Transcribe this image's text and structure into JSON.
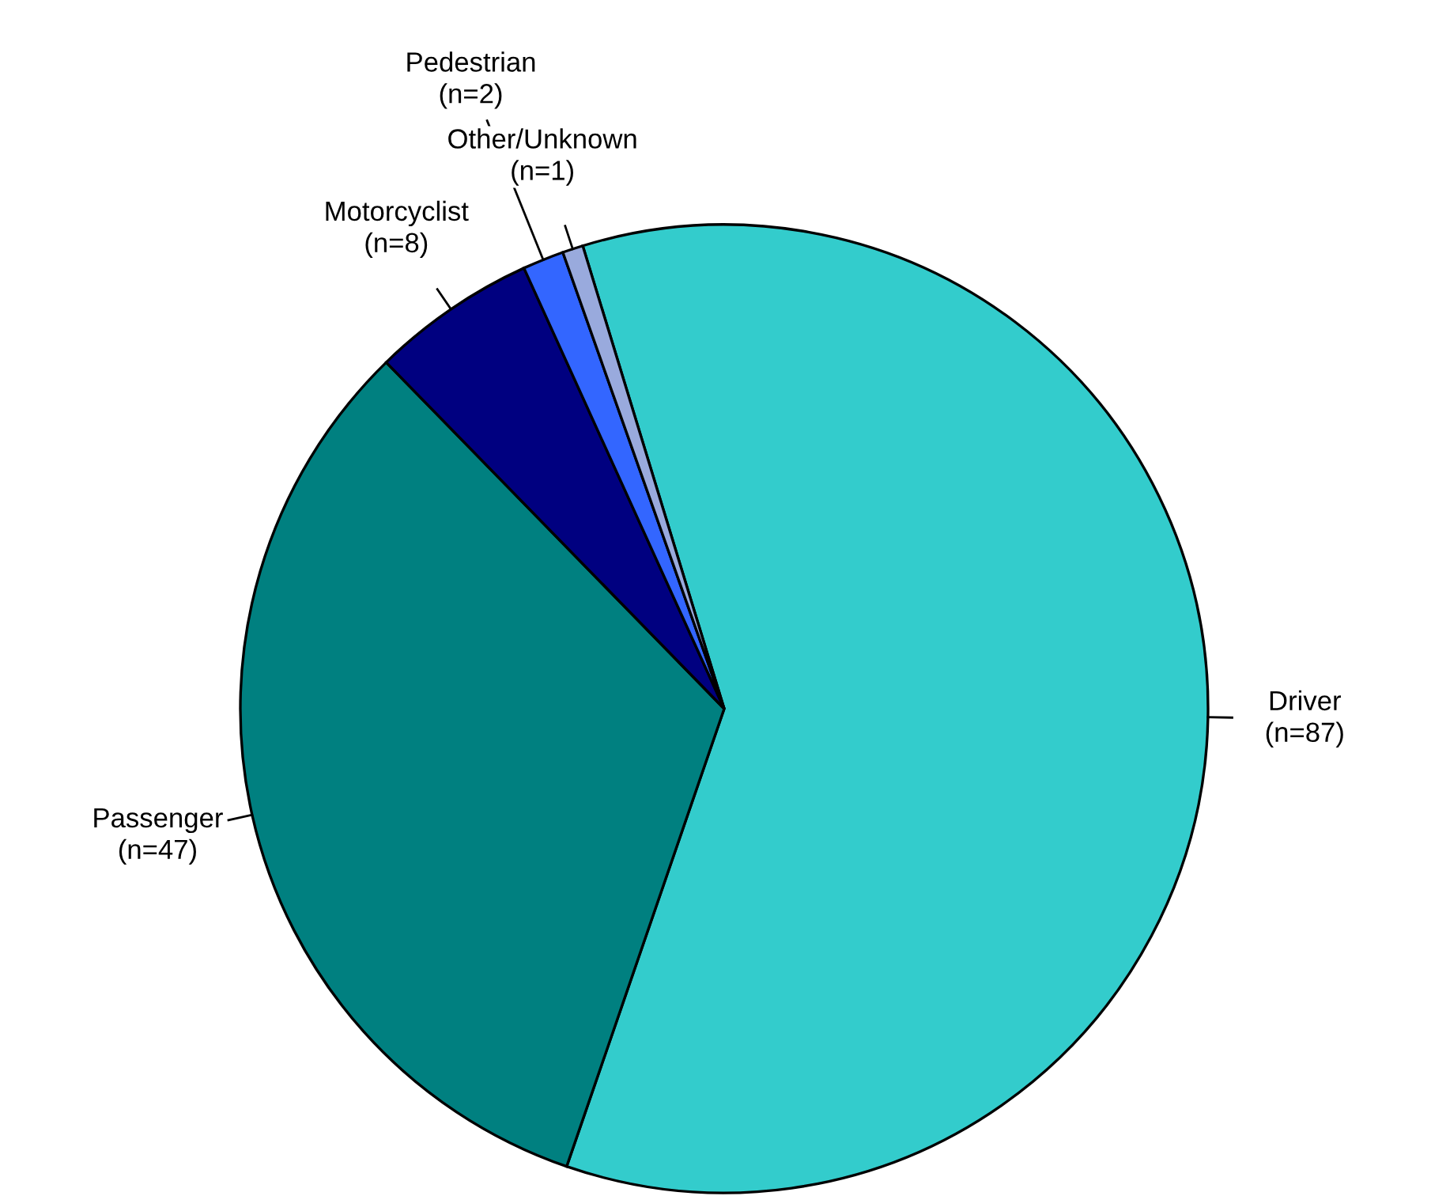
{
  "chart_data": {
    "type": "pie",
    "categories": [
      "Driver",
      "Passenger",
      "Motorcyclist",
      "Pedestrian",
      "Other/Unknown"
    ],
    "values": [
      87,
      47,
      8,
      2,
      1
    ],
    "value_labels": [
      "(n=87)",
      "(n=47)",
      "(n=8)",
      "(n=2)",
      "(n=1)"
    ],
    "colors": [
      "#33cccc",
      "#008080",
      "#000080",
      "#3366ff",
      "#99aadd"
    ]
  }
}
